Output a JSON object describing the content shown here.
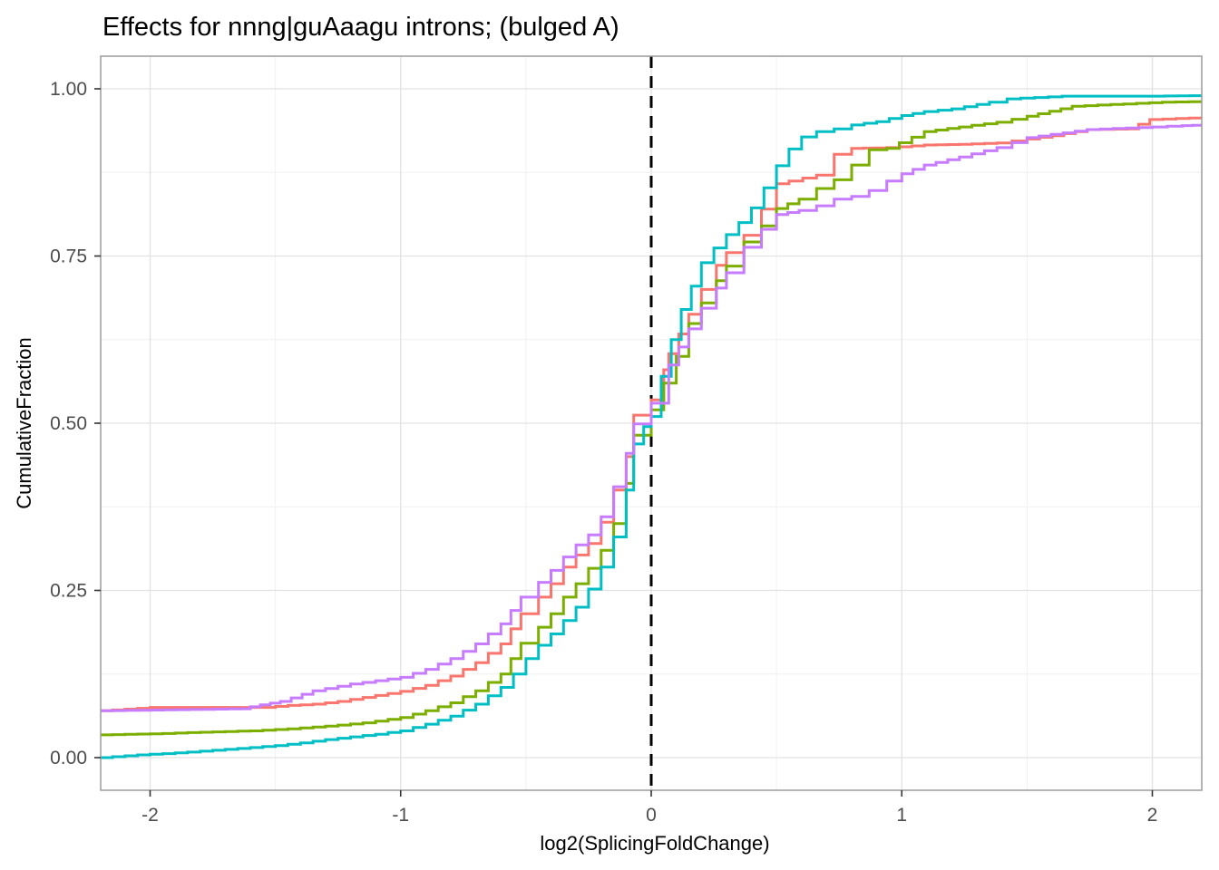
{
  "chart_data": {
    "type": "line",
    "subtype": "ecdf-step",
    "title": "Effects for nnng|guAaagu introns; (bulged A)",
    "xlabel": "log2(SplicingFoldChange)",
    "ylabel": "CumulativeFraction",
    "xlim": [
      -2.197,
      2.197
    ],
    "ylim": [
      -0.0488,
      1.0488
    ],
    "grid": true,
    "legend_position": "none",
    "x_ticks": [
      -2,
      -1,
      0,
      1,
      2
    ],
    "x_tick_labels": [
      "-2",
      "-1",
      "0",
      "1",
      "2"
    ],
    "x_minor_ticks": [
      -1.5,
      -0.5,
      0.5,
      1.5
    ],
    "y_ticks": [
      0.0,
      0.25,
      0.5,
      0.75,
      1.0
    ],
    "y_tick_labels": [
      "0.00",
      "0.25",
      "0.50",
      "0.75",
      "1.00"
    ],
    "y_minor_ticks": [
      0.125,
      0.375,
      0.625,
      0.875
    ],
    "vline": {
      "x": 0,
      "style": "dashed",
      "color": "#000000"
    },
    "colors": {
      "red": "#F8766D",
      "olive": "#7CAE00",
      "teal": "#00BFC4",
      "purple": "#C77CFF",
      "grid_major": "#E2E2E2",
      "grid_minor": "#F0F0F0",
      "panel_border": "#9C9C9C",
      "tick": "#333333",
      "tick_text": "#4D4D4D"
    },
    "series": [
      {
        "name": "red",
        "color": "#F8766D",
        "x": [
          -2.2,
          -2.0,
          -1.55,
          -1.45,
          -1.35,
          -1.25,
          -1.15,
          -1.0,
          -0.9,
          -0.8,
          -0.7,
          -0.6,
          -0.52,
          -0.45,
          -0.4,
          -0.35,
          -0.3,
          -0.25,
          -0.2,
          -0.15,
          -0.1,
          -0.07,
          0.0,
          0.05,
          0.07,
          0.15,
          0.2,
          0.26,
          0.3,
          0.37,
          0.44,
          0.5,
          0.55,
          0.66,
          0.73,
          0.8,
          0.94,
          1.09,
          1.23,
          1.38,
          1.5,
          1.6,
          1.74,
          1.9,
          1.99,
          2.2
        ],
        "y": [
          0.07,
          0.075,
          0.075,
          0.078,
          0.08,
          0.084,
          0.09,
          0.099,
          0.108,
          0.122,
          0.142,
          0.17,
          0.215,
          0.24,
          0.26,
          0.285,
          0.303,
          0.32,
          0.352,
          0.4,
          0.45,
          0.512,
          0.535,
          0.58,
          0.604,
          0.663,
          0.7,
          0.736,
          0.755,
          0.781,
          0.82,
          0.858,
          0.862,
          0.871,
          0.902,
          0.911,
          0.912,
          0.916,
          0.917,
          0.919,
          0.925,
          0.93,
          0.939,
          0.94,
          0.954,
          0.957
        ]
      },
      {
        "name": "olive",
        "color": "#7CAE00",
        "x": [
          -2.2,
          -1.95,
          -1.8,
          -1.6,
          -1.45,
          -1.3,
          -1.15,
          -1.0,
          -0.9,
          -0.8,
          -0.7,
          -0.6,
          -0.52,
          -0.45,
          -0.4,
          -0.35,
          -0.3,
          -0.25,
          -0.2,
          -0.15,
          -0.1,
          -0.07,
          0.0,
          0.05,
          0.1,
          0.15,
          0.2,
          0.26,
          0.3,
          0.37,
          0.44,
          0.5,
          0.59,
          0.66,
          0.73,
          0.8,
          0.87,
          0.94,
          1.09,
          1.23,
          1.38,
          1.5,
          1.68,
          2.04,
          2.2
        ],
        "y": [
          0.034,
          0.036,
          0.038,
          0.04,
          0.043,
          0.047,
          0.052,
          0.06,
          0.07,
          0.082,
          0.1,
          0.125,
          0.171,
          0.195,
          0.215,
          0.24,
          0.26,
          0.283,
          0.31,
          0.35,
          0.41,
          0.482,
          0.52,
          0.56,
          0.6,
          0.649,
          0.68,
          0.713,
          0.735,
          0.771,
          0.795,
          0.821,
          0.835,
          0.851,
          0.864,
          0.886,
          0.909,
          0.911,
          0.936,
          0.943,
          0.95,
          0.959,
          0.974,
          0.98,
          0.981
        ]
      },
      {
        "name": "teal",
        "color": "#00BFC4",
        "x": [
          -2.2,
          -2.05,
          -1.9,
          -1.75,
          -1.6,
          -1.5,
          -1.4,
          -1.3,
          -1.2,
          -1.1,
          -1.0,
          -0.9,
          -0.8,
          -0.7,
          -0.6,
          -0.55,
          -0.5,
          -0.45,
          -0.4,
          -0.35,
          -0.3,
          -0.25,
          -0.2,
          -0.15,
          -0.1,
          -0.07,
          -0.03,
          0.0,
          0.04,
          0.08,
          0.12,
          0.16,
          0.2,
          0.25,
          0.3,
          0.35,
          0.4,
          0.45,
          0.5,
          0.55,
          0.6,
          0.66,
          0.73,
          0.8,
          0.9,
          1.0,
          1.09,
          1.2,
          1.35,
          1.42,
          1.64,
          2.0,
          2.2
        ],
        "y": [
          0.0,
          0.004,
          0.007,
          0.011,
          0.015,
          0.018,
          0.022,
          0.027,
          0.031,
          0.035,
          0.04,
          0.05,
          0.062,
          0.08,
          0.105,
          0.125,
          0.148,
          0.168,
          0.185,
          0.205,
          0.225,
          0.252,
          0.285,
          0.33,
          0.4,
          0.469,
          0.495,
          0.51,
          0.57,
          0.625,
          0.67,
          0.705,
          0.74,
          0.762,
          0.782,
          0.8,
          0.822,
          0.852,
          0.885,
          0.91,
          0.928,
          0.936,
          0.94,
          0.946,
          0.951,
          0.96,
          0.966,
          0.97,
          0.98,
          0.985,
          0.989,
          0.989,
          0.99
        ]
      },
      {
        "name": "purple",
        "color": "#C77CFF",
        "x": [
          -2.2,
          -1.64,
          -1.56,
          -1.48,
          -1.35,
          -1.2,
          -1.0,
          -0.9,
          -0.8,
          -0.7,
          -0.6,
          -0.52,
          -0.45,
          -0.4,
          -0.35,
          -0.3,
          -0.25,
          -0.2,
          -0.15,
          -0.1,
          -0.07,
          0.0,
          0.07,
          0.15,
          0.2,
          0.26,
          0.3,
          0.37,
          0.44,
          0.5,
          0.59,
          0.66,
          0.73,
          0.8,
          0.87,
          0.94,
          1.0,
          1.09,
          1.23,
          1.38,
          1.5,
          1.74,
          2.0,
          2.12,
          2.2
        ],
        "y": [
          0.07,
          0.073,
          0.079,
          0.084,
          0.1,
          0.11,
          0.12,
          0.132,
          0.148,
          0.17,
          0.2,
          0.24,
          0.262,
          0.28,
          0.3,
          0.318,
          0.333,
          0.36,
          0.405,
          0.455,
          0.499,
          0.53,
          0.587,
          0.641,
          0.672,
          0.702,
          0.725,
          0.763,
          0.79,
          0.812,
          0.818,
          0.825,
          0.835,
          0.839,
          0.848,
          0.862,
          0.873,
          0.886,
          0.898,
          0.912,
          0.927,
          0.939,
          0.943,
          0.945,
          0.946
        ]
      }
    ]
  }
}
